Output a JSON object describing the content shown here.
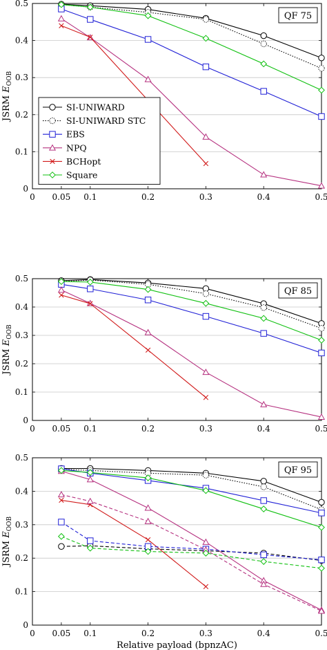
{
  "chart_data": [
    {
      "type": "line",
      "annotation": "QF 75",
      "ylabel": "JSRM E_OOB",
      "xlabel": "",
      "xlim": [
        0,
        0.5
      ],
      "ylim": [
        0,
        0.5
      ],
      "xticks": [
        "0",
        "0.05",
        "0.1",
        "0.2",
        "0.3",
        "0.4",
        "0.5"
      ],
      "yticks": [
        "0",
        "0.1",
        "0.2",
        "0.3",
        "0.4",
        "0.5"
      ],
      "grid": "horizontal",
      "legend": "left",
      "series": [
        {
          "name": "SI-UNIWARD",
          "color": "#000000",
          "marker": "circle",
          "dash": "solid",
          "x": [
            0.05,
            0.1,
            0.2,
            0.3,
            0.4,
            0.5
          ],
          "y": [
            0.498,
            0.494,
            0.484,
            0.46,
            0.413,
            0.353
          ]
        },
        {
          "name": "SI-UNIWARD STC",
          "color": "#000000",
          "marker": "circle-dotted",
          "dash": "dotted",
          "x": [
            0.05,
            0.1,
            0.2,
            0.3,
            0.4,
            0.5
          ],
          "y": [
            0.497,
            0.49,
            0.476,
            0.457,
            0.391,
            0.325
          ]
        },
        {
          "name": "EBS",
          "color": "#1f1fd6",
          "marker": "square",
          "dash": "solid",
          "x": [
            0.05,
            0.1,
            0.2,
            0.3,
            0.4,
            0.5
          ],
          "y": [
            0.485,
            0.457,
            0.403,
            0.329,
            0.263,
            0.195
          ]
        },
        {
          "name": "NPQ",
          "color": "#b5307f",
          "marker": "triangle",
          "dash": "solid",
          "x": [
            0.05,
            0.1,
            0.2,
            0.3,
            0.4,
            0.5
          ],
          "y": [
            0.459,
            0.408,
            0.295,
            0.14,
            0.038,
            0.008
          ]
        },
        {
          "name": "BCHopt",
          "color": "#d11a1a",
          "marker": "x",
          "dash": "solid",
          "x": [
            0.05,
            0.1,
            0.3
          ],
          "y": [
            0.44,
            0.409,
            0.068
          ]
        },
        {
          "name": "Square",
          "color": "#10c010",
          "marker": "diamond",
          "dash": "solid",
          "x": [
            0.05,
            0.1,
            0.2,
            0.3,
            0.4,
            0.5
          ],
          "y": [
            0.497,
            0.49,
            0.467,
            0.406,
            0.337,
            0.266
          ]
        }
      ]
    },
    {
      "type": "line",
      "annotation": "QF 85",
      "ylabel": "JSRM E_OOB",
      "xlabel": "",
      "xlim": [
        0,
        0.5
      ],
      "ylim": [
        0,
        0.5
      ],
      "xticks": [
        "0",
        "0.05",
        "0.1",
        "0.2",
        "0.3",
        "0.4",
        "0.5"
      ],
      "yticks": [
        "0",
        "0.1",
        "0.2",
        "0.3",
        "0.4",
        "0.5"
      ],
      "grid": "horizontal",
      "series": [
        {
          "name": "SI-UNIWARD",
          "color": "#000000",
          "marker": "circle",
          "dash": "solid",
          "x": [
            0.05,
            0.1,
            0.2,
            0.3,
            0.4,
            0.5
          ],
          "y": [
            0.493,
            0.497,
            0.485,
            0.465,
            0.412,
            0.342
          ]
        },
        {
          "name": "SI-UNIWARD STC",
          "color": "#000000",
          "marker": "circle-dotted",
          "dash": "dotted",
          "x": [
            0.05,
            0.1,
            0.2,
            0.3,
            0.4,
            0.5
          ],
          "y": [
            0.49,
            0.495,
            0.48,
            0.447,
            0.398,
            0.325
          ]
        },
        {
          "name": "EBS",
          "color": "#1f1fd6",
          "marker": "square",
          "dash": "solid",
          "x": [
            0.05,
            0.1,
            0.2,
            0.3,
            0.4,
            0.5
          ],
          "y": [
            0.48,
            0.464,
            0.425,
            0.367,
            0.307,
            0.238
          ]
        },
        {
          "name": "NPQ",
          "color": "#b5307f",
          "marker": "triangle",
          "dash": "solid",
          "x": [
            0.05,
            0.1,
            0.2,
            0.3,
            0.4,
            0.5
          ],
          "y": [
            0.46,
            0.413,
            0.31,
            0.17,
            0.056,
            0.012
          ]
        },
        {
          "name": "BCHopt",
          "color": "#d11a1a",
          "marker": "x",
          "dash": "solid",
          "x": [
            0.05,
            0.1,
            0.2,
            0.3
          ],
          "y": [
            0.442,
            0.412,
            0.248,
            0.081
          ]
        },
        {
          "name": "Square",
          "color": "#10c010",
          "marker": "diamond",
          "dash": "solid",
          "x": [
            0.05,
            0.1,
            0.2,
            0.3,
            0.4,
            0.5
          ],
          "y": [
            0.49,
            0.488,
            0.462,
            0.413,
            0.36,
            0.283
          ]
        }
      ]
    },
    {
      "type": "line",
      "annotation": "QF 95",
      "ylabel": "JSRM E_OOB",
      "xlabel": "Relative payload (bpnzAC)",
      "xlim": [
        0,
        0.5
      ],
      "ylim": [
        0,
        0.5
      ],
      "xticks": [
        "0",
        "0.05",
        "0.1",
        "0.2",
        "0.3",
        "0.4",
        "0.5"
      ],
      "yticks": [
        "0",
        "0.1",
        "0.2",
        "0.3",
        "0.4",
        "0.5"
      ],
      "grid": "horizontal",
      "series": [
        {
          "name": "SI-UNIWARD",
          "color": "#000000",
          "marker": "circle",
          "dash": "solid",
          "x": [
            0.05,
            0.1,
            0.2,
            0.3,
            0.4,
            0.5
          ],
          "y": [
            0.468,
            0.468,
            0.462,
            0.454,
            0.43,
            0.367
          ]
        },
        {
          "name": "SI-UNIWARD STC",
          "color": "#000000",
          "marker": "circle-dotted",
          "dash": "dotted",
          "x": [
            0.05,
            0.1,
            0.2,
            0.3,
            0.4,
            0.5
          ],
          "y": [
            0.466,
            0.462,
            0.454,
            0.448,
            0.413,
            0.345
          ]
        },
        {
          "name": "EBS",
          "color": "#1f1fd6",
          "marker": "square",
          "dash": "solid",
          "x": [
            0.05,
            0.1,
            0.2,
            0.3,
            0.4,
            0.5
          ],
          "y": [
            0.467,
            0.454,
            0.432,
            0.409,
            0.372,
            0.335
          ]
        },
        {
          "name": "NPQ",
          "color": "#b5307f",
          "marker": "triangle",
          "dash": "solid",
          "x": [
            0.05,
            0.1,
            0.2,
            0.3,
            0.4,
            0.5
          ],
          "y": [
            0.46,
            0.435,
            0.35,
            0.248,
            0.133,
            0.045
          ]
        },
        {
          "name": "BCHopt",
          "color": "#d11a1a",
          "marker": "x",
          "dash": "solid",
          "x": [
            0.05,
            0.1,
            0.2,
            0.3
          ],
          "y": [
            0.373,
            0.36,
            0.255,
            0.115
          ]
        },
        {
          "name": "Square",
          "color": "#10c010",
          "marker": "diamond",
          "dash": "solid",
          "x": [
            0.05,
            0.1,
            0.2,
            0.3,
            0.4,
            0.5
          ],
          "y": [
            0.462,
            0.456,
            0.44,
            0.402,
            0.347,
            0.292
          ]
        },
        {
          "name": "",
          "color": "#000000",
          "marker": "circle",
          "dash": "dashed",
          "x": [
            0.05,
            0.1,
            0.2,
            0.3,
            0.4,
            0.5
          ],
          "y": [
            0.235,
            0.237,
            0.228,
            0.222,
            0.215,
            0.193
          ]
        },
        {
          "name": "",
          "color": "#1f1fd6",
          "marker": "square",
          "dash": "dashed",
          "x": [
            0.05,
            0.1,
            0.2,
            0.3,
            0.4,
            0.5
          ],
          "y": [
            0.308,
            0.252,
            0.235,
            0.227,
            0.21,
            0.195
          ]
        },
        {
          "name": "",
          "color": "#b5307f",
          "marker": "triangle",
          "dash": "dashed",
          "x": [
            0.05,
            0.1,
            0.2,
            0.3,
            0.4,
            0.5
          ],
          "y": [
            0.39,
            0.37,
            0.31,
            0.225,
            0.122,
            0.042
          ]
        },
        {
          "name": "",
          "color": "#10c010",
          "marker": "diamond",
          "dash": "dashed",
          "x": [
            0.05,
            0.1,
            0.2,
            0.3,
            0.4,
            0.5
          ],
          "y": [
            0.265,
            0.23,
            0.22,
            0.215,
            0.19,
            0.17
          ]
        }
      ]
    }
  ]
}
